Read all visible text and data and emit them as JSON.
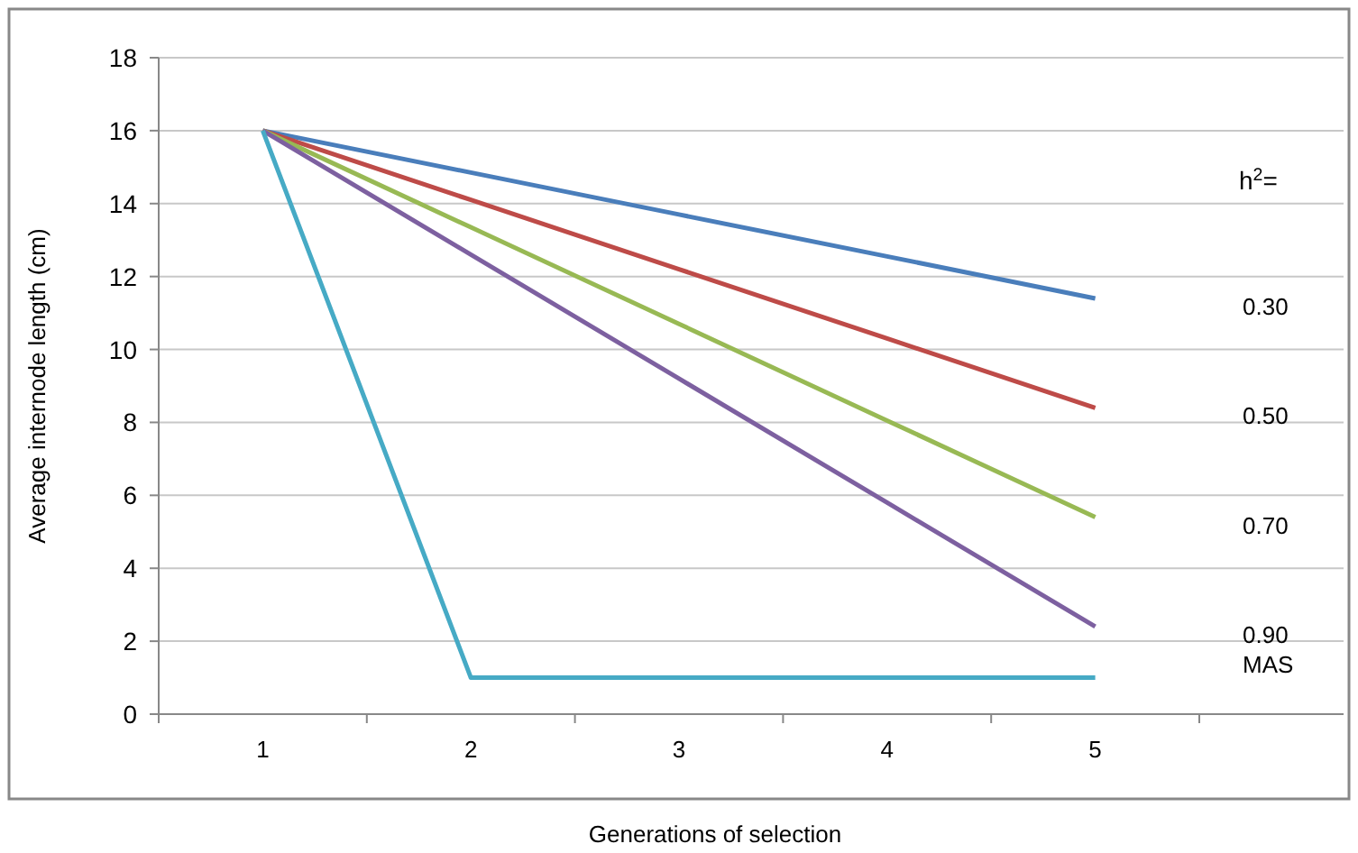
{
  "chart_data": {
    "type": "line",
    "xlabel": "Generations of selection",
    "ylabel": "Average internode length (cm)",
    "categories": [
      "1",
      "2",
      "3",
      "4",
      "5"
    ],
    "series": [
      {
        "name": "0.30",
        "color": "#4a7ebb",
        "values": [
          16,
          14.85,
          13.7,
          12.55,
          11.4
        ]
      },
      {
        "name": "0.50",
        "color": "#be4b48",
        "values": [
          16,
          14.1,
          12.2,
          10.3,
          8.4
        ]
      },
      {
        "name": "0.70",
        "color": "#98b954",
        "values": [
          16,
          13.35,
          10.7,
          8.05,
          5.4
        ]
      },
      {
        "name": "0.90",
        "color": "#7d60a0",
        "values": [
          16,
          12.6,
          9.2,
          5.8,
          2.4
        ]
      },
      {
        "name": "MAS",
        "color": "#46aac5",
        "values": [
          16,
          1,
          1,
          1,
          1
        ]
      }
    ],
    "annotations": [
      "h$^{2}$="
    ],
    "ylim": [
      0,
      18
    ],
    "yticks": [
      0,
      2,
      4,
      6,
      8,
      10,
      12,
      14,
      16,
      18
    ],
    "grid": "y",
    "legend": false,
    "marker": "none",
    "line_style": "solid"
  }
}
